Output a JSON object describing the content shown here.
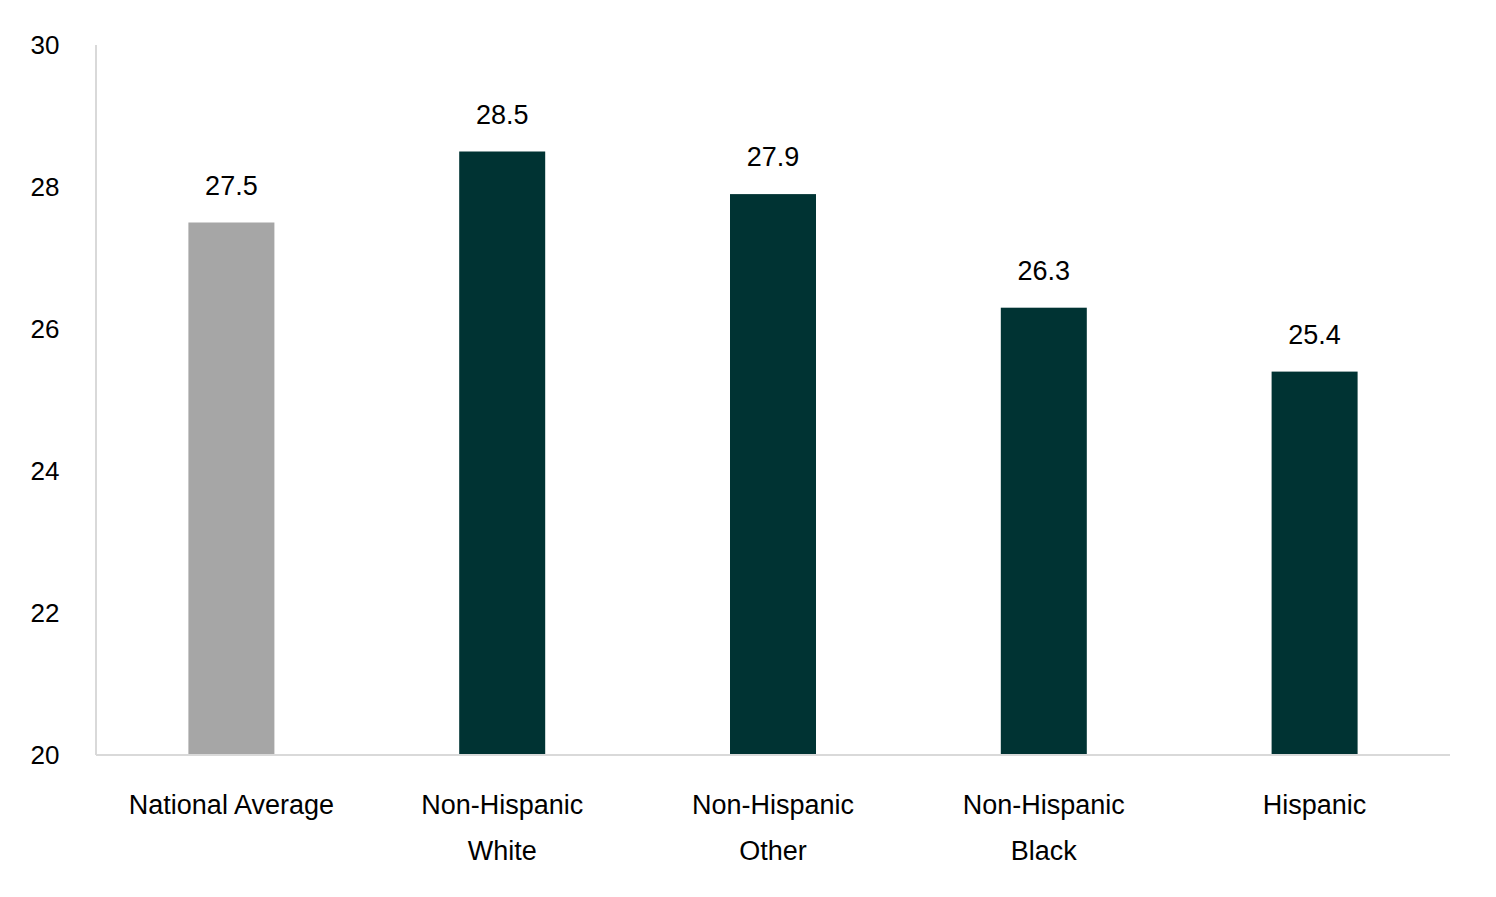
{
  "chart_data": {
    "type": "bar",
    "categories": [
      "National Average",
      "Non-Hispanic White",
      "Non-Hispanic Other",
      "Non-Hispanic Black",
      "Hispanic"
    ],
    "values": [
      27.5,
      28.5,
      27.9,
      26.3,
      25.4
    ],
    "colors": [
      "#a6a6a6",
      "#003333",
      "#003333",
      "#003333",
      "#003333"
    ],
    "ylim": [
      20,
      30
    ],
    "yticks": [
      20,
      22,
      24,
      26,
      28,
      30
    ],
    "grid": false,
    "data_labels": true
  }
}
